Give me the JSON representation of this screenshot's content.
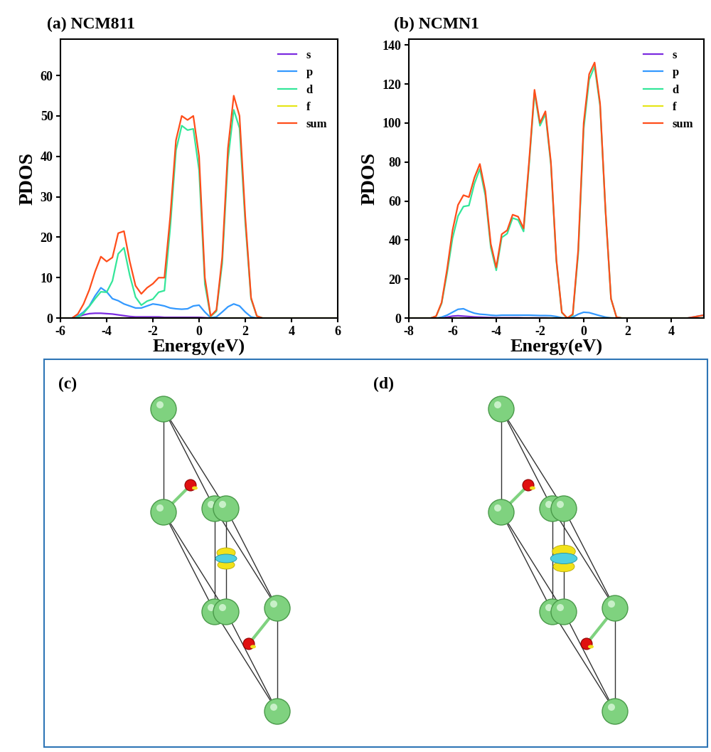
{
  "chart_data": [
    {
      "type": "line",
      "title": "(a) NCM811",
      "x_label": "Energy(eV)",
      "y_label": "PDOS",
      "x": [
        -6,
        -5.75,
        -5.5,
        -5.25,
        -5,
        -4.75,
        -4.5,
        -4.25,
        -4,
        -3.75,
        -3.5,
        -3.25,
        -3,
        -2.75,
        -2.5,
        -2.25,
        -2,
        -1.75,
        -1.5,
        -1.25,
        -1,
        -0.75,
        -0.5,
        -0.25,
        0,
        0.25,
        0.5,
        0.75,
        1,
        1.25,
        1.5,
        1.75,
        2,
        2.25,
        2.5,
        2.75,
        3,
        3.25,
        3.5,
        3.75,
        4,
        4.25,
        4.5,
        4.75,
        5,
        5.25,
        5.5,
        5.75,
        6
      ],
      "series": [
        {
          "name": "s",
          "color": "#7b2be0",
          "values": [
            0,
            0,
            0,
            0.3,
            0.8,
            1.1,
            1.2,
            1.2,
            1.1,
            1,
            0.8,
            0.6,
            0.4,
            0.3,
            0.3,
            0.3,
            0.3,
            0.3,
            0.2,
            0.2,
            0.2,
            0.2,
            0.2,
            0.2,
            0.2,
            0.1,
            0,
            0,
            0,
            0,
            0,
            0,
            0,
            0,
            0,
            0,
            0,
            0,
            0,
            0,
            0,
            0,
            0,
            0,
            0,
            0,
            0,
            0,
            0
          ]
        },
        {
          "name": "p",
          "color": "#3399ff",
          "values": [
            0,
            0,
            0,
            0.5,
            1.5,
            3,
            5.5,
            7.5,
            6.5,
            4.8,
            4.3,
            3.5,
            3,
            2.5,
            2.5,
            3,
            3.5,
            3.3,
            3,
            2.5,
            2.3,
            2.2,
            2.3,
            3,
            3.2,
            1.5,
            0.1,
            0.3,
            1.5,
            2.8,
            3.5,
            3,
            1.5,
            0.3,
            0,
            0,
            0,
            0,
            0,
            0,
            0,
            0,
            0,
            0,
            0,
            0,
            0,
            0,
            0
          ]
        },
        {
          "name": "d",
          "color": "#33e699",
          "values": [
            0,
            0,
            0,
            0.2,
            1.2,
            2.9,
            4.8,
            6.5,
            6.4,
            9.2,
            15.9,
            17.4,
            10.6,
            5.2,
            3.2,
            4.2,
            4.7,
            6.4,
            6.8,
            22.3,
            41.5,
            47.6,
            46.5,
            46.8,
            36.6,
            8.4,
            0.4,
            1.7,
            13.5,
            39.2,
            51.5,
            47,
            23.5,
            4.7,
            0.5,
            0,
            0,
            0,
            0,
            0,
            0,
            0,
            0,
            0,
            0,
            0,
            0,
            0,
            0
          ]
        },
        {
          "name": "f",
          "color": "#e6e619",
          "values": [
            0,
            0,
            0,
            0,
            0,
            0,
            0,
            0,
            0,
            0,
            0,
            0,
            0,
            0,
            0,
            0,
            0,
            0,
            0,
            0,
            0,
            0,
            0,
            0,
            0,
            0,
            0,
            0,
            0,
            0,
            0,
            0,
            0,
            0,
            0,
            0,
            0,
            0,
            0,
            0,
            0,
            0,
            0,
            0,
            0,
            0,
            0,
            0,
            0
          ]
        },
        {
          "name": "sum",
          "color": "#ff4d1a",
          "values": [
            0,
            0,
            0,
            1,
            3.5,
            7,
            11.5,
            15.2,
            14,
            15,
            21,
            21.5,
            14,
            8,
            6,
            7.5,
            8.5,
            10,
            10,
            25,
            44,
            50,
            49,
            50,
            40,
            10,
            0.5,
            2,
            15,
            42,
            55,
            50,
            25,
            5,
            0.5,
            0,
            0,
            0,
            0,
            0,
            0,
            0,
            0,
            0,
            0,
            0,
            0,
            0,
            0
          ]
        }
      ],
      "xlim": [
        -6,
        6
      ],
      "xticks": [
        -6,
        -4,
        -2,
        0,
        2,
        4,
        6
      ],
      "ylim": [
        0,
        69
      ],
      "yticks": [
        0,
        10,
        20,
        30,
        40,
        50,
        60
      ],
      "grid": false,
      "legend": "upper right"
    },
    {
      "type": "line",
      "title": "(b) NCMN1",
      "x_label": "Energy(eV)",
      "y_label": "PDOS",
      "x": [
        -8,
        -7.75,
        -7.5,
        -7.25,
        -7,
        -6.75,
        -6.5,
        -6.25,
        -6,
        -5.75,
        -5.5,
        -5.25,
        -5,
        -4.75,
        -4.5,
        -4.25,
        -4,
        -3.75,
        -3.5,
        -3.25,
        -3,
        -2.75,
        -2.5,
        -2.25,
        -2,
        -1.75,
        -1.5,
        -1.25,
        -1,
        -0.75,
        -0.5,
        -0.25,
        0,
        0.25,
        0.5,
        0.75,
        1,
        1.25,
        1.5,
        1.75,
        2,
        2.25,
        2.5,
        2.75,
        3,
        3.25,
        3.5,
        3.75,
        4,
        4.25,
        4.5,
        4.75,
        5,
        5.25,
        5.5
      ],
      "series": [
        {
          "name": "s",
          "color": "#7b2be0",
          "values": [
            0,
            0,
            0,
            0,
            0,
            0,
            0,
            0.5,
            1,
            1.2,
            1,
            0.8,
            0.6,
            0.5,
            0.4,
            0.3,
            0.2,
            0.2,
            0.2,
            0.2,
            0.2,
            0.1,
            0.1,
            0.1,
            0.1,
            0.1,
            0,
            0,
            0,
            0,
            0,
            0,
            0,
            0,
            0,
            0,
            0,
            0,
            0,
            0,
            0,
            0,
            0,
            0,
            0,
            0,
            0,
            0,
            0,
            0,
            0,
            0,
            0,
            0,
            0
          ]
        },
        {
          "name": "p",
          "color": "#3399ff",
          "values": [
            0,
            0,
            0,
            0,
            0,
            0,
            0.5,
            1.5,
            3,
            4.5,
            4.8,
            3.5,
            2.5,
            2,
            1.8,
            1.5,
            1.3,
            1.5,
            1.5,
            1.5,
            1.5,
            1.5,
            1.5,
            1.4,
            1.3,
            1.3,
            1.2,
            0.8,
            0.2,
            0,
            0.5,
            2,
            3,
            2.8,
            2,
            1.2,
            0.5,
            0.1,
            0,
            0,
            0,
            0,
            0,
            0,
            0,
            0,
            0,
            0,
            0,
            0,
            0,
            0,
            0.5,
            1,
            1.5
          ]
        },
        {
          "name": "d",
          "color": "#33e699",
          "values": [
            0,
            0,
            0,
            0,
            0,
            1,
            7.5,
            23,
            41,
            52.3,
            57.2,
            57.7,
            68.9,
            76.5,
            62.8,
            36.2,
            24.5,
            41.3,
            43.3,
            51.3,
            50.3,
            44.4,
            78.4,
            115.5,
            98.6,
            104.6,
            78.8,
            29.2,
            2.8,
            0,
            1.5,
            33,
            97,
            122.2,
            129,
            108.8,
            54.5,
            9.9,
            0.5,
            0,
            0,
            0,
            0,
            0,
            0,
            0,
            0,
            0,
            0,
            0,
            0,
            0,
            0,
            0,
            0
          ]
        },
        {
          "name": "f",
          "color": "#e6e619",
          "values": [
            0,
            0,
            0,
            0,
            0,
            0,
            0,
            0,
            0,
            0,
            0,
            0,
            0,
            0,
            0,
            0,
            0,
            0,
            0,
            0,
            0,
            0,
            0,
            0,
            0,
            0,
            0,
            0,
            0,
            0,
            0,
            0,
            0,
            0,
            0,
            0,
            0,
            0,
            0,
            0,
            0,
            0,
            0,
            0,
            0,
            0,
            0,
            0,
            0,
            0,
            0,
            0,
            0,
            0,
            0
          ]
        },
        {
          "name": "sum",
          "color": "#ff4d1a",
          "values": [
            0,
            0,
            0,
            0,
            0,
            1,
            8,
            25,
            45,
            58,
            63,
            62,
            72,
            79,
            65,
            38,
            26,
            43,
            45,
            53,
            52,
            46,
            80,
            117,
            100,
            106,
            80,
            30,
            3,
            0,
            2,
            35,
            100,
            125,
            131,
            110,
            55,
            10,
            0.5,
            0,
            0,
            0,
            0,
            0,
            0,
            0,
            0,
            0,
            0,
            0,
            0,
            0,
            0.5,
            1,
            1.5
          ]
        }
      ],
      "xlim": [
        -8,
        5.5
      ],
      "xticks": [
        -8,
        -6,
        -4,
        -2,
        0,
        2,
        4
      ],
      "ylim": [
        0,
        143
      ],
      "yticks": [
        0,
        20,
        40,
        60,
        80,
        100,
        120,
        140
      ],
      "grid": false,
      "legend": "upper right"
    }
  ],
  "structure_panels": [
    {
      "label": "(c)"
    },
    {
      "label": "(d)"
    }
  ]
}
